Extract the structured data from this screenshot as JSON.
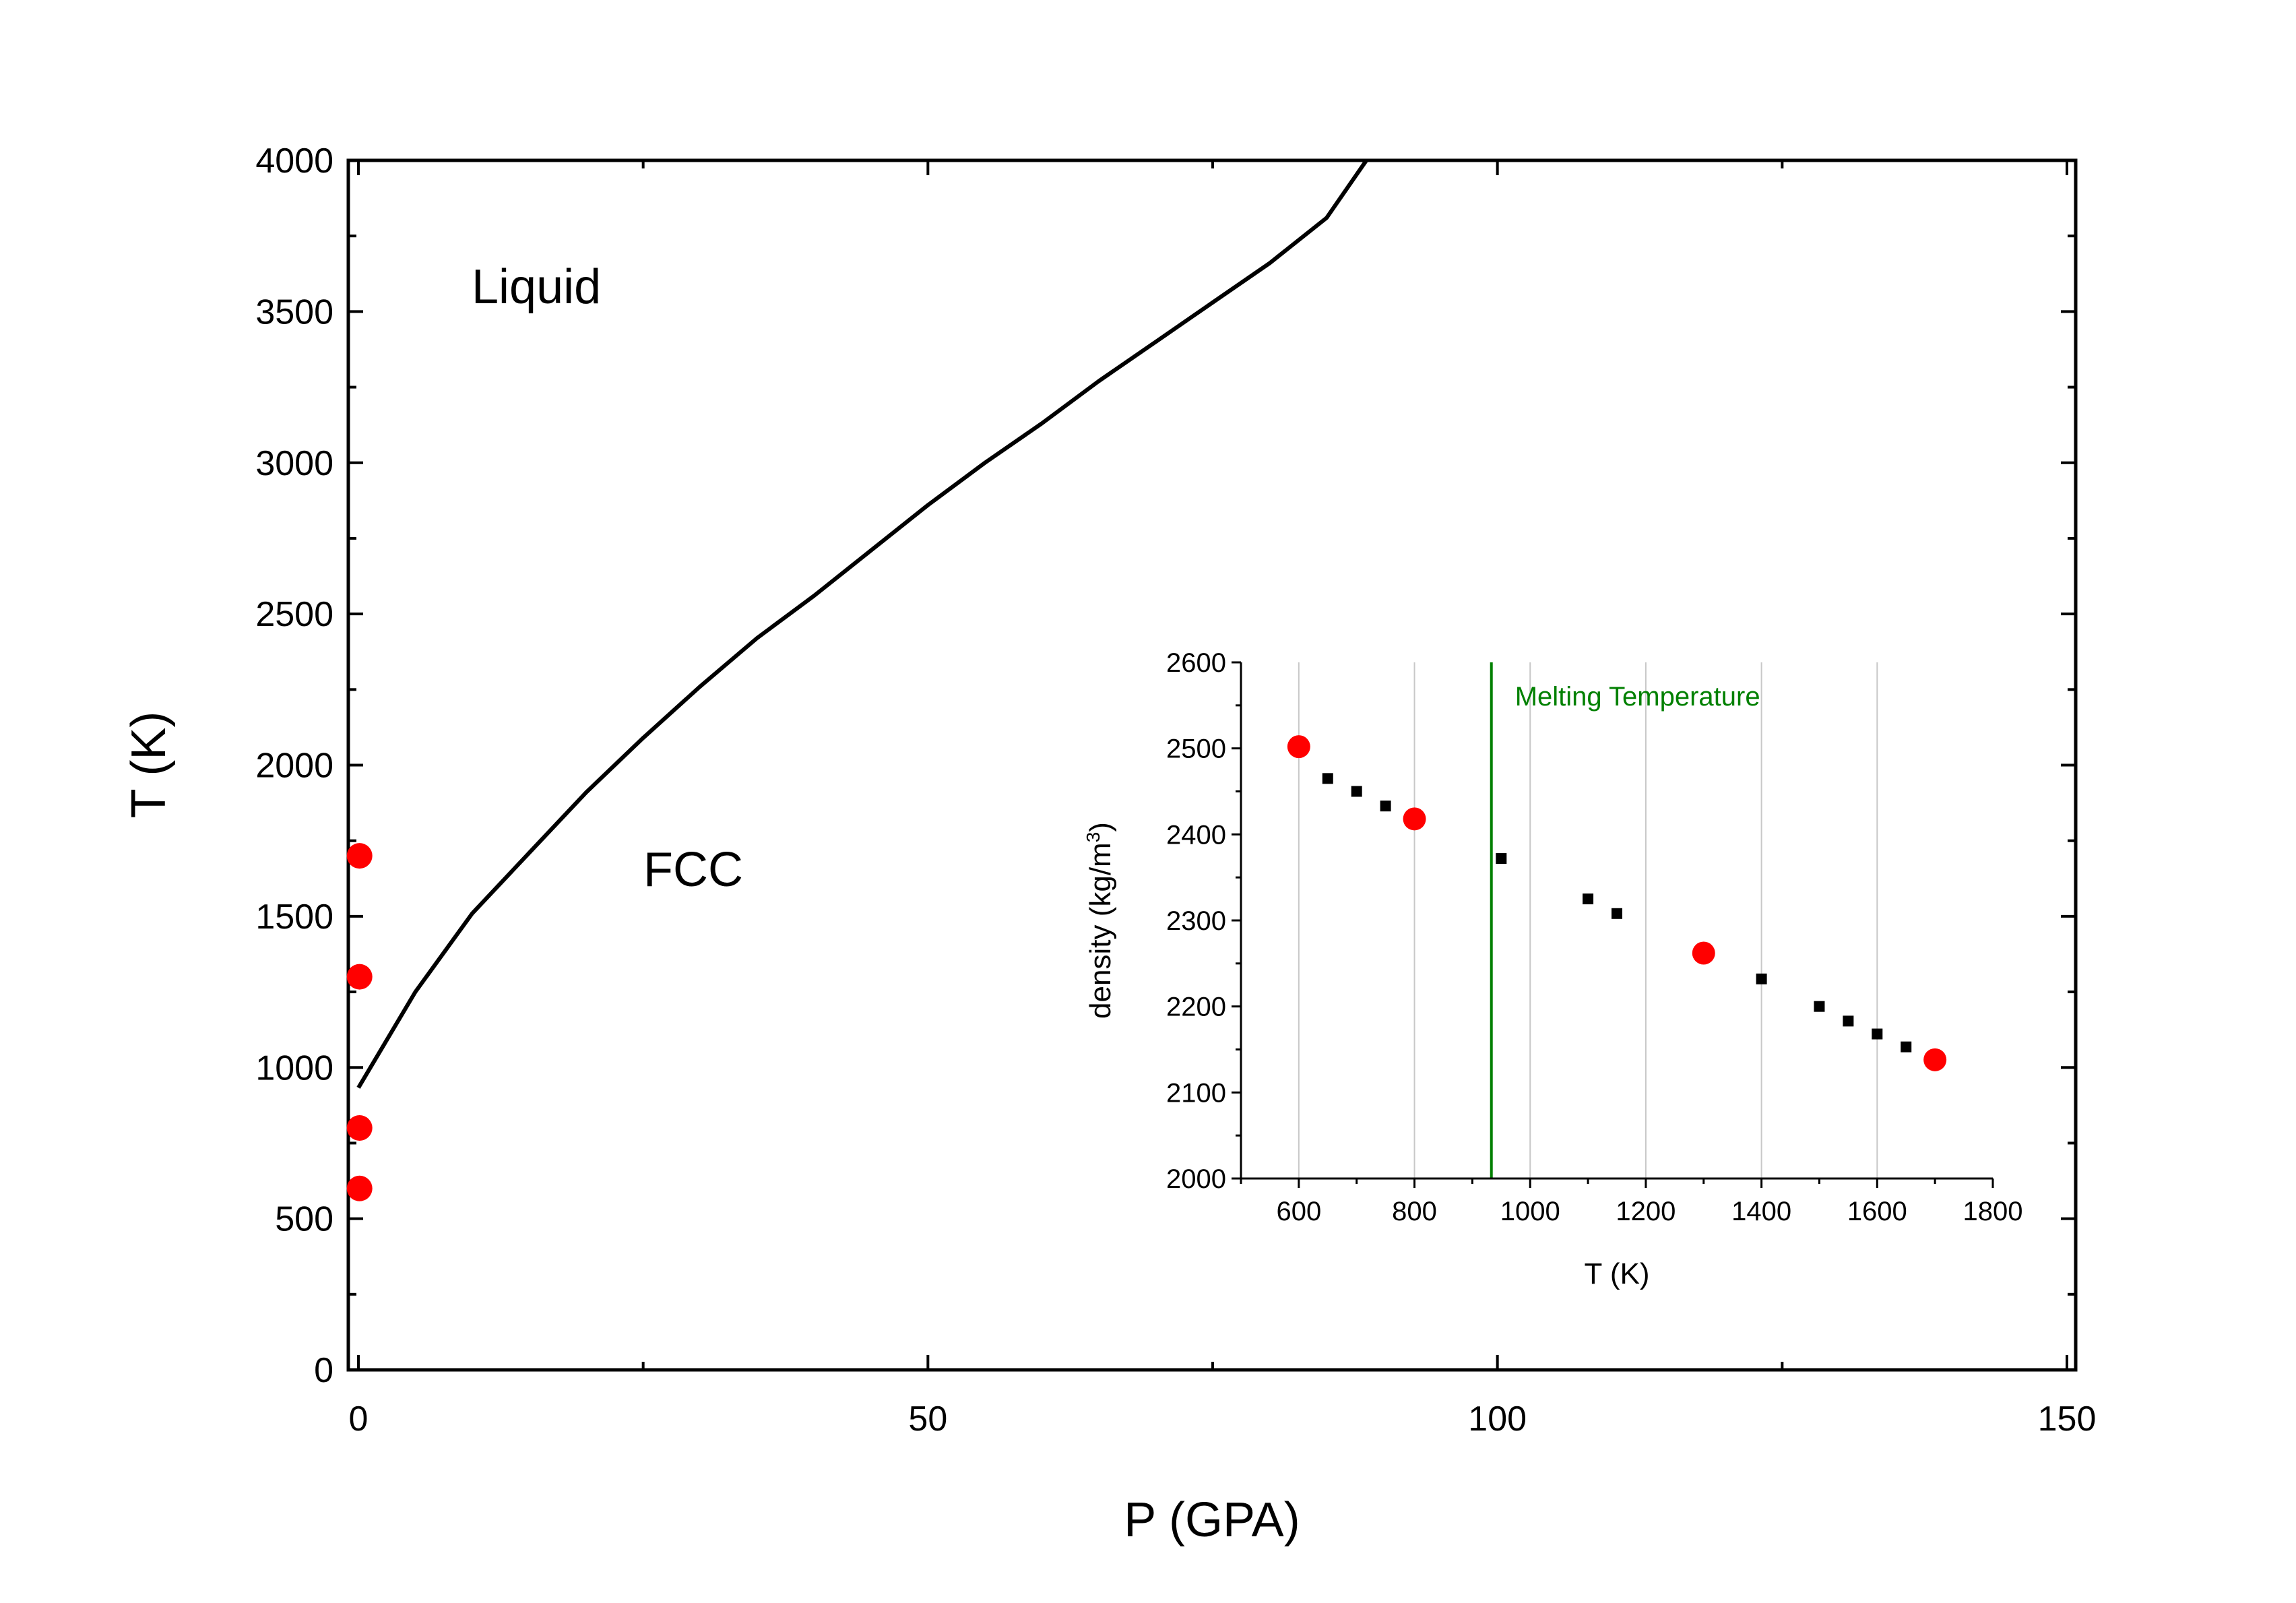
{
  "chart_data": [
    {
      "type": "line",
      "title": "",
      "xlabel": "P (GPA)",
      "ylabel": "T (K)",
      "xlim": [
        0,
        150
      ],
      "ylim": [
        0,
        4000
      ],
      "xticks": [
        "0",
        "50",
        "100",
        "150"
      ],
      "yticks": [
        "0",
        "500",
        "1000",
        "1500",
        "2000",
        "2500",
        "3000",
        "3500",
        "4000"
      ],
      "grid": false,
      "annotations": [
        "Liquid",
        "FCC"
      ],
      "series": [
        {
          "type": "line",
          "color": "#000000",
          "x": [
            0,
            5,
            10,
            15,
            20,
            25,
            30,
            35,
            40,
            45,
            50,
            55,
            60,
            65,
            70,
            75,
            80,
            85,
            88.5
          ],
          "y": [
            933,
            1250,
            1510,
            1710,
            1910,
            2090,
            2260,
            2420,
            2560,
            2710,
            2860,
            3000,
            3130,
            3270,
            3400,
            3530,
            3660,
            3810,
            4000
          ]
        },
        {
          "type": "scatter",
          "color": "#ff0000",
          "x": [
            0.1,
            0.1,
            0.1,
            0.1
          ],
          "y": [
            600,
            800,
            1300,
            1700
          ]
        }
      ]
    },
    {
      "type": "scatter",
      "title": "",
      "xlabel": "T (K)",
      "ylabel_main": "density (kg/m",
      "ylabel_sup": "3",
      "ylabel_end": ")",
      "xlim": [
        500,
        1800
      ],
      "ylim": [
        2000,
        2600
      ],
      "xticks": [
        "600",
        "800",
        "1000",
        "1200",
        "1400",
        "1600",
        "1800"
      ],
      "yticks": [
        "2000",
        "2100",
        "2200",
        "2300",
        "2400",
        "2500",
        "2600"
      ],
      "grid": true,
      "grid_lines_x": [
        600,
        800,
        1000,
        1200,
        1400,
        1600
      ],
      "annotation": {
        "text": "Melting Temperature",
        "x": 933,
        "color": "#008000"
      },
      "series": [
        {
          "type": "scatter",
          "marker": "square",
          "color": "#000000",
          "x": [
            650,
            700,
            750,
            950,
            1100,
            1150,
            1400,
            1500,
            1550,
            1600,
            1650
          ],
          "y": [
            2465,
            2450,
            2433,
            2372,
            2325,
            2308,
            2232,
            2200,
            2183,
            2168,
            2153
          ]
        },
        {
          "type": "scatter",
          "marker": "circle",
          "color": "#ff0000",
          "x": [
            600,
            800,
            1300,
            1700
          ],
          "y": [
            2502,
            2418,
            2262,
            2138
          ]
        }
      ]
    }
  ]
}
